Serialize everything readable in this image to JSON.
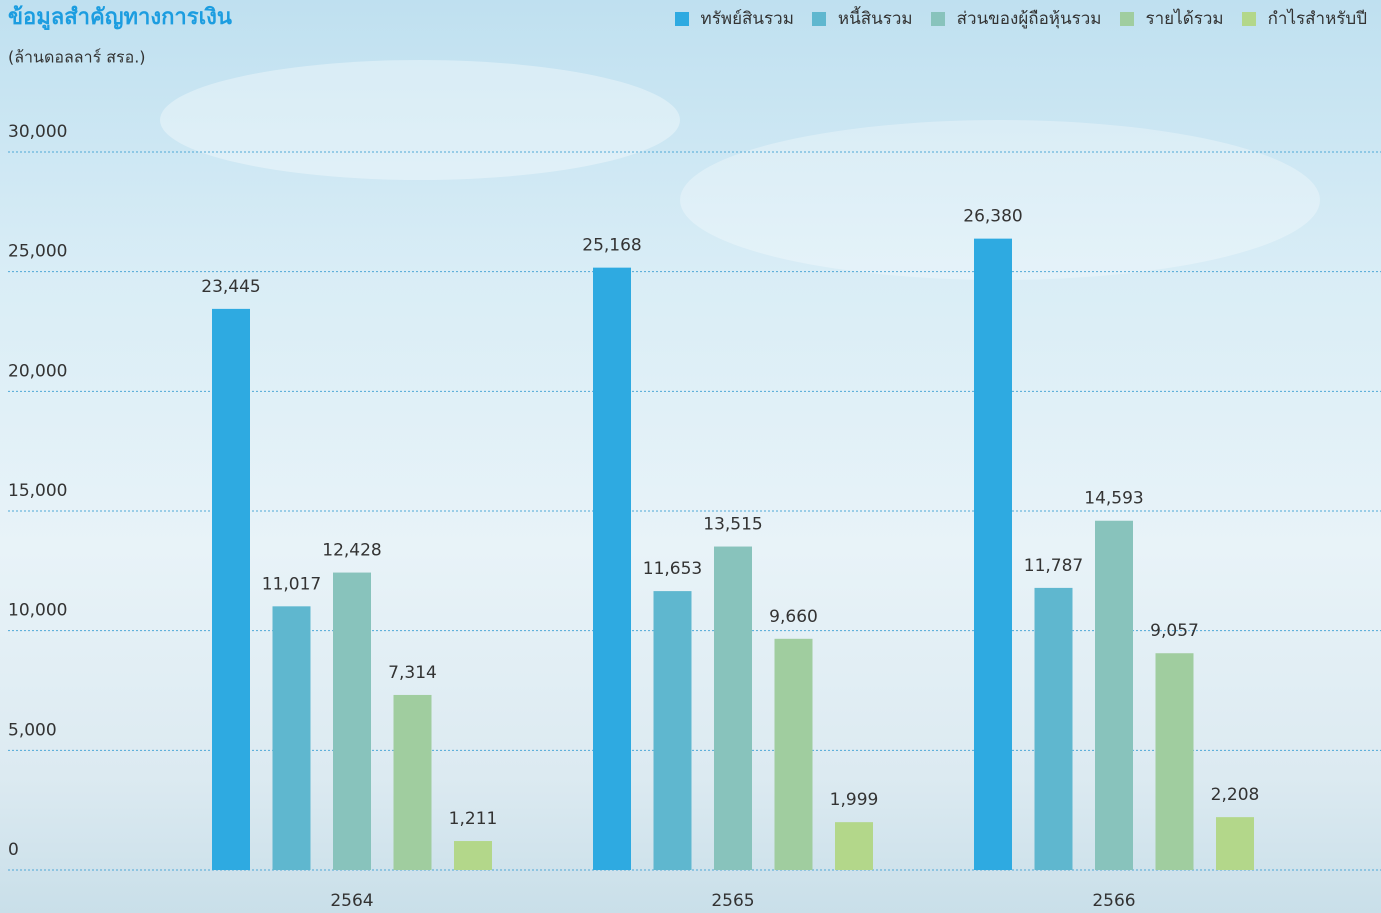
{
  "chart_data": {
    "type": "bar",
    "title": "ข้อมูลสำคัญทางการเงิน",
    "subtitle": "(ล้านดอลลาร์ สรอ.)",
    "categories": [
      "2564",
      "2565",
      "2566"
    ],
    "series": [
      {
        "name": "ทรัพย์สินรวม",
        "color": "#2eaae1",
        "values": [
          23445,
          25168,
          26380
        ],
        "value_labels": [
          "23,445",
          "25,168",
          "26,380"
        ]
      },
      {
        "name": "หนี้สินรวม",
        "color": "#5fb7cf",
        "values": [
          11017,
          11653,
          11787
        ],
        "value_labels": [
          "11,017",
          "11,653",
          "11,787"
        ]
      },
      {
        "name": "ส่วนของผู้ถือหุ้นรวม",
        "color": "#88c3bc",
        "values": [
          12428,
          13515,
          14593
        ],
        "value_labels": [
          "12,428",
          "13,515",
          "14,593"
        ]
      },
      {
        "name": "รายได้รวม",
        "color": "#a0cd9f",
        "values": [
          7314,
          9660,
          9057
        ],
        "value_labels": [
          "7,314",
          "9,660",
          "9,057"
        ]
      },
      {
        "name": "กำไรสำหรับปี",
        "color": "#b3d78a",
        "values": [
          1211,
          1999,
          2208
        ],
        "value_labels": [
          "1,211",
          "1,999",
          "2,208"
        ]
      }
    ],
    "ylim": [
      0,
      30000
    ],
    "yticks": [
      0,
      {
        "value": 5000,
        "label": "5,000"
      },
      {
        "value": 10000,
        "label": "10,000"
      },
      {
        "value": 15000,
        "label": "15,000"
      },
      {
        "value": 20000,
        "label": "20,000"
      },
      {
        "value": 25000,
        "label": "25,000"
      },
      {
        "value": 30000,
        "label": "30,000"
      }
    ],
    "grid": true
  }
}
